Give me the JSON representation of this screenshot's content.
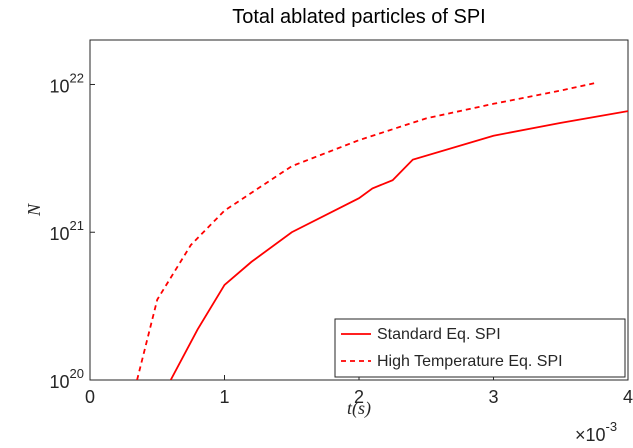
{
  "chart_data": {
    "type": "line",
    "title": "Total ablated particles of SPI",
    "xlabel": "t(s)",
    "ylabel": "N",
    "x_multiplier": "×10^-3",
    "xlim": [
      0,
      4
    ],
    "xticks": [
      0,
      1,
      2,
      3,
      4
    ],
    "ylim": [
      1e+20,
      2e+22
    ],
    "log_y": true,
    "yticks": [
      {
        "value": 1e+20,
        "label": "10^20"
      },
      {
        "value": 1e+21,
        "label": "10^21"
      },
      {
        "value": 1e+22,
        "label": "10^22"
      }
    ],
    "legend": "lower right",
    "series": [
      {
        "name": "Standard Eq. SPI",
        "color": "#ff0000",
        "dash": false,
        "x": [
          0.6,
          0.8,
          1.0,
          1.2,
          1.5,
          2.0,
          2.1,
          2.25,
          2.4,
          3.0,
          3.5,
          4.0
        ],
        "values": [
          1e+20,
          2.2e+20,
          4.4e+20,
          6.3e+20,
          1e+21,
          1.7e+21,
          1.98e+21,
          2.25e+21,
          3.1e+21,
          4.5e+21,
          5.5e+21,
          6.6e+21
        ]
      },
      {
        "name": "High Temperature Eq. SPI",
        "color": "#ff0000",
        "dash": true,
        "x": [
          0.35,
          0.5,
          0.75,
          1.0,
          1.5,
          2.0,
          2.5,
          3.0,
          3.5,
          3.75
        ],
        "values": [
          1e+20,
          3.5e+20,
          8.2e+20,
          1.4e+21,
          2.8e+21,
          4.2e+21,
          5.9e+21,
          7.4e+21,
          9.1e+21,
          1.02e+22
        ]
      }
    ]
  }
}
